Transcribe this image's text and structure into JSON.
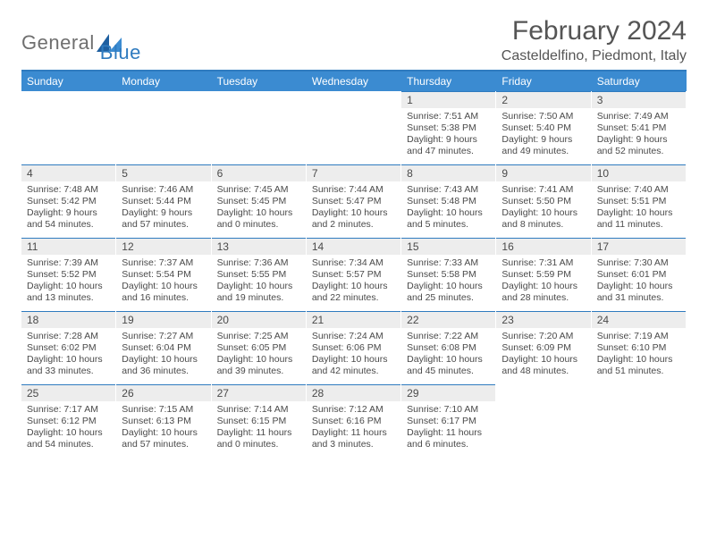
{
  "brand": {
    "general": "General",
    "blue": "Blue"
  },
  "title": "February 2024",
  "location": "Casteldelfino, Piedmont, Italy",
  "colors": {
    "header_bg": "#3b8bd1",
    "header_text": "#ffffff",
    "accent_line": "#2f7bbf",
    "daynum_bg": "#ededed",
    "body_text": "#4a4a4a",
    "logo_gray": "#6f6f6f",
    "logo_blue": "#2f7bbf",
    "page_bg": "#ffffff"
  },
  "typography": {
    "title_fontsize": 30,
    "location_fontsize": 16,
    "dayhead_fontsize": 12,
    "daynum_fontsize": 12,
    "body_fontsize": 10.5
  },
  "day_names": [
    "Sunday",
    "Monday",
    "Tuesday",
    "Wednesday",
    "Thursday",
    "Friday",
    "Saturday"
  ],
  "weeks": [
    [
      {
        "blank": true
      },
      {
        "blank": true
      },
      {
        "blank": true
      },
      {
        "blank": true
      },
      {
        "num": "1",
        "sunrise": "Sunrise: 7:51 AM",
        "sunset": "Sunset: 5:38 PM",
        "daylight": "Daylight: 9 hours and 47 minutes."
      },
      {
        "num": "2",
        "sunrise": "Sunrise: 7:50 AM",
        "sunset": "Sunset: 5:40 PM",
        "daylight": "Daylight: 9 hours and 49 minutes."
      },
      {
        "num": "3",
        "sunrise": "Sunrise: 7:49 AM",
        "sunset": "Sunset: 5:41 PM",
        "daylight": "Daylight: 9 hours and 52 minutes."
      }
    ],
    [
      {
        "num": "4",
        "sunrise": "Sunrise: 7:48 AM",
        "sunset": "Sunset: 5:42 PM",
        "daylight": "Daylight: 9 hours and 54 minutes."
      },
      {
        "num": "5",
        "sunrise": "Sunrise: 7:46 AM",
        "sunset": "Sunset: 5:44 PM",
        "daylight": "Daylight: 9 hours and 57 minutes."
      },
      {
        "num": "6",
        "sunrise": "Sunrise: 7:45 AM",
        "sunset": "Sunset: 5:45 PM",
        "daylight": "Daylight: 10 hours and 0 minutes."
      },
      {
        "num": "7",
        "sunrise": "Sunrise: 7:44 AM",
        "sunset": "Sunset: 5:47 PM",
        "daylight": "Daylight: 10 hours and 2 minutes."
      },
      {
        "num": "8",
        "sunrise": "Sunrise: 7:43 AM",
        "sunset": "Sunset: 5:48 PM",
        "daylight": "Daylight: 10 hours and 5 minutes."
      },
      {
        "num": "9",
        "sunrise": "Sunrise: 7:41 AM",
        "sunset": "Sunset: 5:50 PM",
        "daylight": "Daylight: 10 hours and 8 minutes."
      },
      {
        "num": "10",
        "sunrise": "Sunrise: 7:40 AM",
        "sunset": "Sunset: 5:51 PM",
        "daylight": "Daylight: 10 hours and 11 minutes."
      }
    ],
    [
      {
        "num": "11",
        "sunrise": "Sunrise: 7:39 AM",
        "sunset": "Sunset: 5:52 PM",
        "daylight": "Daylight: 10 hours and 13 minutes."
      },
      {
        "num": "12",
        "sunrise": "Sunrise: 7:37 AM",
        "sunset": "Sunset: 5:54 PM",
        "daylight": "Daylight: 10 hours and 16 minutes."
      },
      {
        "num": "13",
        "sunrise": "Sunrise: 7:36 AM",
        "sunset": "Sunset: 5:55 PM",
        "daylight": "Daylight: 10 hours and 19 minutes."
      },
      {
        "num": "14",
        "sunrise": "Sunrise: 7:34 AM",
        "sunset": "Sunset: 5:57 PM",
        "daylight": "Daylight: 10 hours and 22 minutes."
      },
      {
        "num": "15",
        "sunrise": "Sunrise: 7:33 AM",
        "sunset": "Sunset: 5:58 PM",
        "daylight": "Daylight: 10 hours and 25 minutes."
      },
      {
        "num": "16",
        "sunrise": "Sunrise: 7:31 AM",
        "sunset": "Sunset: 5:59 PM",
        "daylight": "Daylight: 10 hours and 28 minutes."
      },
      {
        "num": "17",
        "sunrise": "Sunrise: 7:30 AM",
        "sunset": "Sunset: 6:01 PM",
        "daylight": "Daylight: 10 hours and 31 minutes."
      }
    ],
    [
      {
        "num": "18",
        "sunrise": "Sunrise: 7:28 AM",
        "sunset": "Sunset: 6:02 PM",
        "daylight": "Daylight: 10 hours and 33 minutes."
      },
      {
        "num": "19",
        "sunrise": "Sunrise: 7:27 AM",
        "sunset": "Sunset: 6:04 PM",
        "daylight": "Daylight: 10 hours and 36 minutes."
      },
      {
        "num": "20",
        "sunrise": "Sunrise: 7:25 AM",
        "sunset": "Sunset: 6:05 PM",
        "daylight": "Daylight: 10 hours and 39 minutes."
      },
      {
        "num": "21",
        "sunrise": "Sunrise: 7:24 AM",
        "sunset": "Sunset: 6:06 PM",
        "daylight": "Daylight: 10 hours and 42 minutes."
      },
      {
        "num": "22",
        "sunrise": "Sunrise: 7:22 AM",
        "sunset": "Sunset: 6:08 PM",
        "daylight": "Daylight: 10 hours and 45 minutes."
      },
      {
        "num": "23",
        "sunrise": "Sunrise: 7:20 AM",
        "sunset": "Sunset: 6:09 PM",
        "daylight": "Daylight: 10 hours and 48 minutes."
      },
      {
        "num": "24",
        "sunrise": "Sunrise: 7:19 AM",
        "sunset": "Sunset: 6:10 PM",
        "daylight": "Daylight: 10 hours and 51 minutes."
      }
    ],
    [
      {
        "num": "25",
        "sunrise": "Sunrise: 7:17 AM",
        "sunset": "Sunset: 6:12 PM",
        "daylight": "Daylight: 10 hours and 54 minutes."
      },
      {
        "num": "26",
        "sunrise": "Sunrise: 7:15 AM",
        "sunset": "Sunset: 6:13 PM",
        "daylight": "Daylight: 10 hours and 57 minutes."
      },
      {
        "num": "27",
        "sunrise": "Sunrise: 7:14 AM",
        "sunset": "Sunset: 6:15 PM",
        "daylight": "Daylight: 11 hours and 0 minutes."
      },
      {
        "num": "28",
        "sunrise": "Sunrise: 7:12 AM",
        "sunset": "Sunset: 6:16 PM",
        "daylight": "Daylight: 11 hours and 3 minutes."
      },
      {
        "num": "29",
        "sunrise": "Sunrise: 7:10 AM",
        "sunset": "Sunset: 6:17 PM",
        "daylight": "Daylight: 11 hours and 6 minutes."
      },
      {
        "blank": true
      },
      {
        "blank": true
      }
    ]
  ]
}
